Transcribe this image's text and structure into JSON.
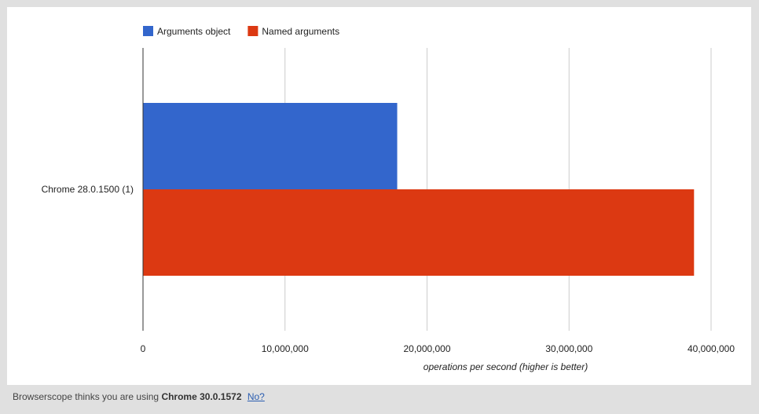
{
  "chart_data": {
    "type": "bar",
    "orientation": "horizontal",
    "categories": [
      "Chrome 28.0.1500 (1)"
    ],
    "series": [
      {
        "name": "Arguments object",
        "values": [
          17900000
        ],
        "color": "#3366cc"
      },
      {
        "name": "Named arguments",
        "values": [
          38800000
        ],
        "color": "#dc3912"
      }
    ],
    "xlim": [
      0,
      40000000
    ],
    "xticks": [
      0,
      10000000,
      20000000,
      30000000,
      40000000
    ],
    "xtick_labels": [
      "0",
      "10,000,000",
      "20,000,000",
      "30,000,000",
      "40,000,000"
    ],
    "xlabel": "operations per second (higher is better)",
    "ylabel": "",
    "title": "",
    "grid": true,
    "legend_position": "top-left"
  },
  "footer": {
    "prefix": "Browserscope thinks you are using",
    "browser": "Chrome 30.0.1572",
    "link": "No?"
  }
}
